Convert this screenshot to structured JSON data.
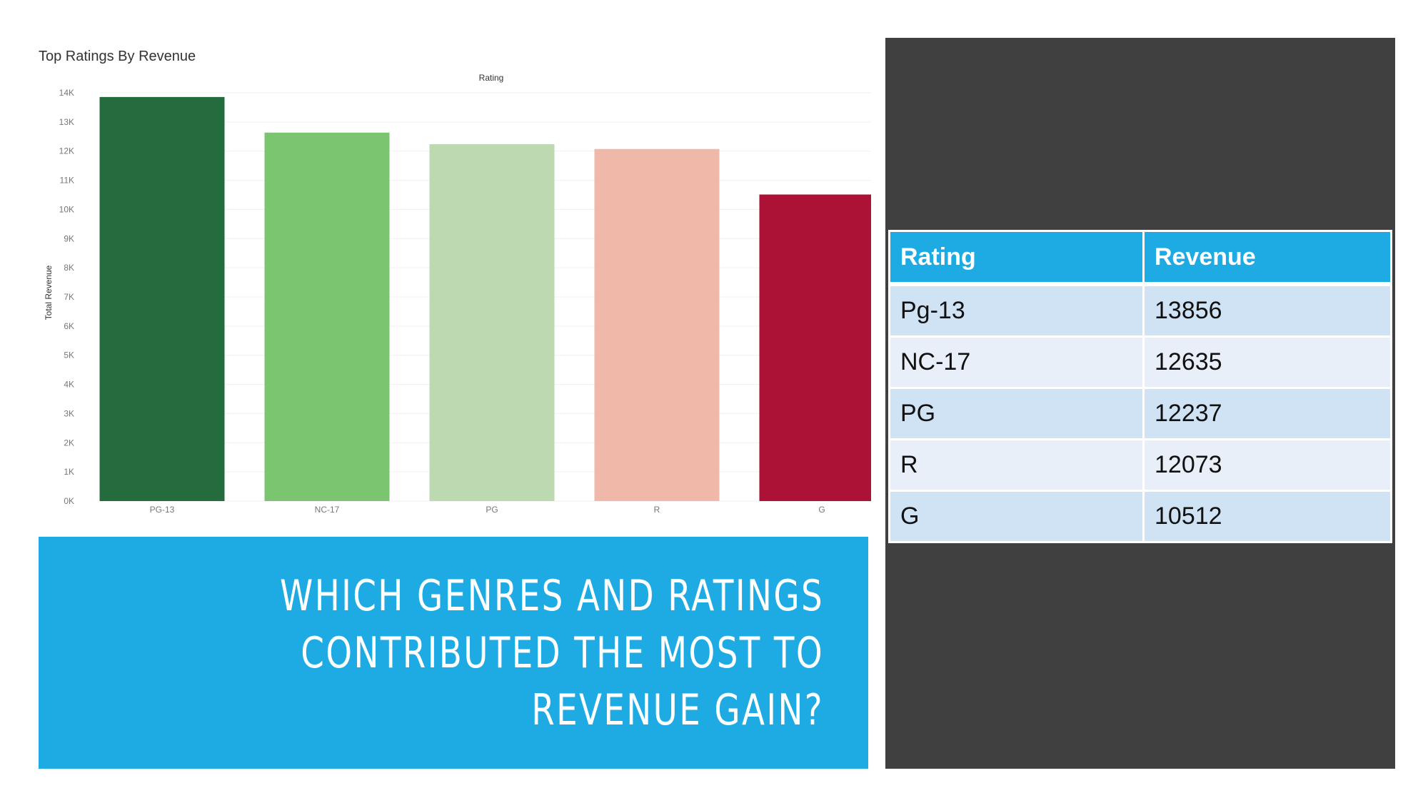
{
  "chart_data": {
    "type": "bar",
    "title": "Top Ratings By Revenue",
    "column_header": "Rating",
    "ylabel": "Total Revenue",
    "categories": [
      "PG-13",
      "NC-17",
      "PG",
      "R",
      "G"
    ],
    "values": [
      13856,
      12635,
      12237,
      12073,
      10512
    ],
    "colors": [
      "#246b3e",
      "#7bc470",
      "#bdd9b1",
      "#f0b8a8",
      "#ac1236"
    ],
    "ylim": [
      0,
      14000
    ],
    "yticks": [
      0,
      1000,
      2000,
      3000,
      4000,
      5000,
      6000,
      7000,
      8000,
      9000,
      10000,
      11000,
      12000,
      13000,
      14000
    ],
    "ytick_labels": [
      "0K",
      "1K",
      "2K",
      "3K",
      "4K",
      "5K",
      "6K",
      "7K",
      "8K",
      "9K",
      "10K",
      "11K",
      "12K",
      "13K",
      "14K"
    ],
    "grid": true
  },
  "question": "Which genres and ratings contributed the most to revenue gain?",
  "table": {
    "headers": [
      "Rating",
      "Revenue"
    ],
    "rows": [
      [
        "Pg-13",
        "13856"
      ],
      [
        "NC-17",
        "12635"
      ],
      [
        "PG",
        "12237"
      ],
      [
        "R",
        "12073"
      ],
      [
        "G",
        "10512"
      ]
    ]
  },
  "colors": {
    "accent_blue": "#1eabe3",
    "dark_panel": "#404040",
    "row_light": "#cfe3f5",
    "row_lighter": "#e8eff9"
  }
}
